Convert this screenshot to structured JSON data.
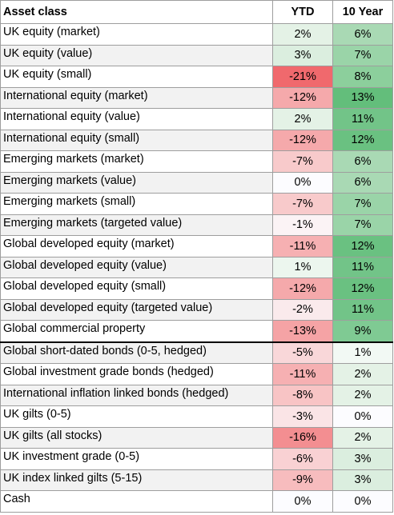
{
  "table": {
    "headers": [
      "Asset class",
      "YTD",
      "10 Year"
    ],
    "rows": [
      {
        "name": "UK equity (market)",
        "ytd": "2%",
        "ytd_color": "#e4f2e6",
        "y10": "6%",
        "y10_color": "#a9d9b4"
      },
      {
        "name": "UK equity (value)",
        "ytd": "3%",
        "ytd_color": "#dbeedf",
        "y10": "7%",
        "y10_color": "#9ad4a8"
      },
      {
        "name": "UK equity (small)",
        "ytd": "-21%",
        "ytd_color": "#f0696d",
        "y10": "8%",
        "y10_color": "#8ccf9c"
      },
      {
        "name": "International equity (market)",
        "ytd": "-12%",
        "ytd_color": "#f5a9ab",
        "y10": "13%",
        "y10_color": "#63be7b"
      },
      {
        "name": "International equity (value)",
        "ytd": "2%",
        "ytd_color": "#e4f2e6",
        "y10": "11%",
        "y10_color": "#72c488"
      },
      {
        "name": "International equity (small)",
        "ytd": "-12%",
        "ytd_color": "#f5a9ab",
        "y10": "12%",
        "y10_color": "#6ac181"
      },
      {
        "name": "Emerging markets (market)",
        "ytd": "-7%",
        "ytd_color": "#f8cacb",
        "y10": "6%",
        "y10_color": "#a9d9b4"
      },
      {
        "name": "Emerging markets (value)",
        "ytd": "0%",
        "ytd_color": "#fcfcff",
        "y10": "6%",
        "y10_color": "#a9d9b4"
      },
      {
        "name": "Emerging markets (small)",
        "ytd": "-7%",
        "ytd_color": "#f8cacb",
        "y10": "7%",
        "y10_color": "#9ad4a8"
      },
      {
        "name": "Emerging markets (targeted value)",
        "ytd": "-1%",
        "ytd_color": "#fbf3f5",
        "y10": "7%",
        "y10_color": "#9ad4a8"
      },
      {
        "name": "Global developed equity (market)",
        "ytd": "-11%",
        "ytd_color": "#f6b0b2",
        "y10": "12%",
        "y10_color": "#6ac181"
      },
      {
        "name": "Global developed equity (value)",
        "ytd": "1%",
        "ytd_color": "#ecf6ee",
        "y10": "11%",
        "y10_color": "#72c488"
      },
      {
        "name": "Global developed equity (small)",
        "ytd": "-12%",
        "ytd_color": "#f5a9ab",
        "y10": "12%",
        "y10_color": "#6ac181"
      },
      {
        "name": "Global developed equity (targeted value)",
        "ytd": "-2%",
        "ytd_color": "#faeaec",
        "y10": "11%",
        "y10_color": "#72c488"
      },
      {
        "name": "Global commercial property",
        "ytd": "-13%",
        "ytd_color": "#f5a3a5",
        "y10": "9%",
        "y10_color": "#7fca93"
      },
      {
        "name": "Global short-dated bonds (0-5, hedged)",
        "ytd": "-5%",
        "ytd_color": "#f9d7d9",
        "y10": "1%",
        "y10_color": "#f2f9f4"
      },
      {
        "name": "Global investment grade bonds (hedged)",
        "ytd": "-11%",
        "ytd_color": "#f6b0b2",
        "y10": "2%",
        "y10_color": "#e4f2e6"
      },
      {
        "name": "International inflation linked bonds (hedged)",
        "ytd": "-8%",
        "ytd_color": "#f8c4c5",
        "y10": "2%",
        "y10_color": "#e4f2e6"
      },
      {
        "name": "UK gilts (0-5)",
        "ytd": "-3%",
        "ytd_color": "#fae4e6",
        "y10": "0%",
        "y10_color": "#fcfcff"
      },
      {
        "name": "UK gilts (all stocks)",
        "ytd": "-16%",
        "ytd_color": "#f38e91",
        "y10": "2%",
        "y10_color": "#e4f2e6"
      },
      {
        "name": "UK investment grade (0-5)",
        "ytd": "-6%",
        "ytd_color": "#f9d1d3",
        "y10": "3%",
        "y10_color": "#dbeedf"
      },
      {
        "name": "UK index linked gilts (5-15)",
        "ytd": "-9%",
        "ytd_color": "#f7bcbe",
        "y10": "3%",
        "y10_color": "#dbeedf"
      },
      {
        "name": "Cash",
        "ytd": "0%",
        "ytd_color": "#fcfcff",
        "y10": "0%",
        "y10_color": "#fcfcff"
      }
    ]
  }
}
